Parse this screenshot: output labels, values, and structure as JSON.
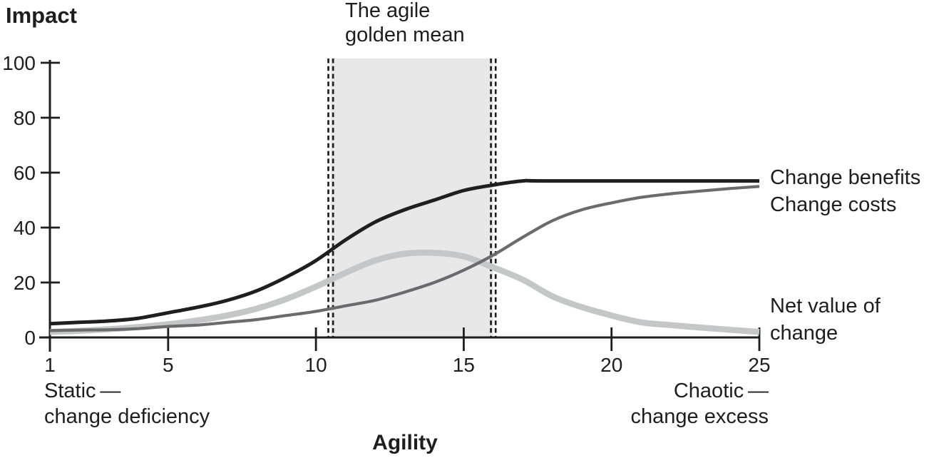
{
  "page": {
    "background": "#ffffff"
  },
  "chart_data": {
    "type": "line",
    "y_axis_title": "Impact",
    "x_axis_title": "Agility",
    "band_label": "The agile\ngolden mean",
    "x_ticks": [
      1,
      5,
      10,
      15,
      20,
      25
    ],
    "y_ticks": [
      0,
      20,
      40,
      60,
      80,
      100
    ],
    "x_range": [
      1,
      25
    ],
    "y_range": [
      0,
      100
    ],
    "grid": "off",
    "axis_color": "#1e1e1e",
    "band": {
      "x0": 10.5,
      "x1": 16,
      "fill": "#e8e8e9",
      "border": "double-dashed",
      "border_color": "#1e1e1e"
    },
    "series": [
      {
        "name": "Change benefits",
        "color": "#1f1f1f",
        "width": 5,
        "x": [
          1,
          2,
          3,
          4,
          5,
          6,
          7,
          8,
          9,
          10,
          11,
          12,
          13,
          14,
          15,
          16,
          17,
          18,
          25
        ],
        "values": [
          5,
          5.5,
          6,
          7,
          9,
          11,
          13.5,
          17,
          22,
          28,
          35.5,
          42,
          46.5,
          50,
          53.5,
          55.5,
          57,
          57,
          57
        ]
      },
      {
        "name": "Change costs",
        "color": "#6b6b6d",
        "width": 4.2,
        "x": [
          1,
          2,
          3,
          4,
          5,
          6,
          7,
          8,
          9,
          10,
          11,
          12,
          13,
          14,
          15,
          16,
          17,
          18,
          19,
          20,
          21,
          22,
          23,
          24,
          25
        ],
        "values": [
          2.5,
          2.7,
          2.8,
          3.2,
          4,
          4.5,
          5.5,
          6.5,
          8,
          9.5,
          11.5,
          13.5,
          16.5,
          20,
          24.5,
          30,
          36.5,
          42.5,
          46.5,
          49,
          51,
          52.3,
          53.3,
          54.2,
          55
        ]
      },
      {
        "name": "Net value of change",
        "color": "#c4c6c8",
        "width": 8.5,
        "x": [
          1,
          2,
          3,
          4,
          5,
          6,
          7,
          8,
          9,
          10,
          11,
          12,
          13,
          14,
          15,
          16,
          17,
          18,
          19,
          20,
          21,
          22,
          23,
          24,
          25
        ],
        "values": [
          2,
          2.4,
          3,
          3.8,
          4.8,
          6.2,
          8,
          10.5,
          14,
          18.5,
          23.5,
          28,
          30.5,
          30.8,
          29.5,
          25.5,
          21,
          15,
          11,
          8,
          5.5,
          4.5,
          3.6,
          2.8,
          2
        ]
      }
    ],
    "curve_labels": {
      "benefits": "Change benefits",
      "costs": "Change costs",
      "net": "Net value of\nchange"
    },
    "annotations": {
      "left": "Static —\nchange deficiency",
      "right": "Chaotic —\nchange excess"
    }
  }
}
